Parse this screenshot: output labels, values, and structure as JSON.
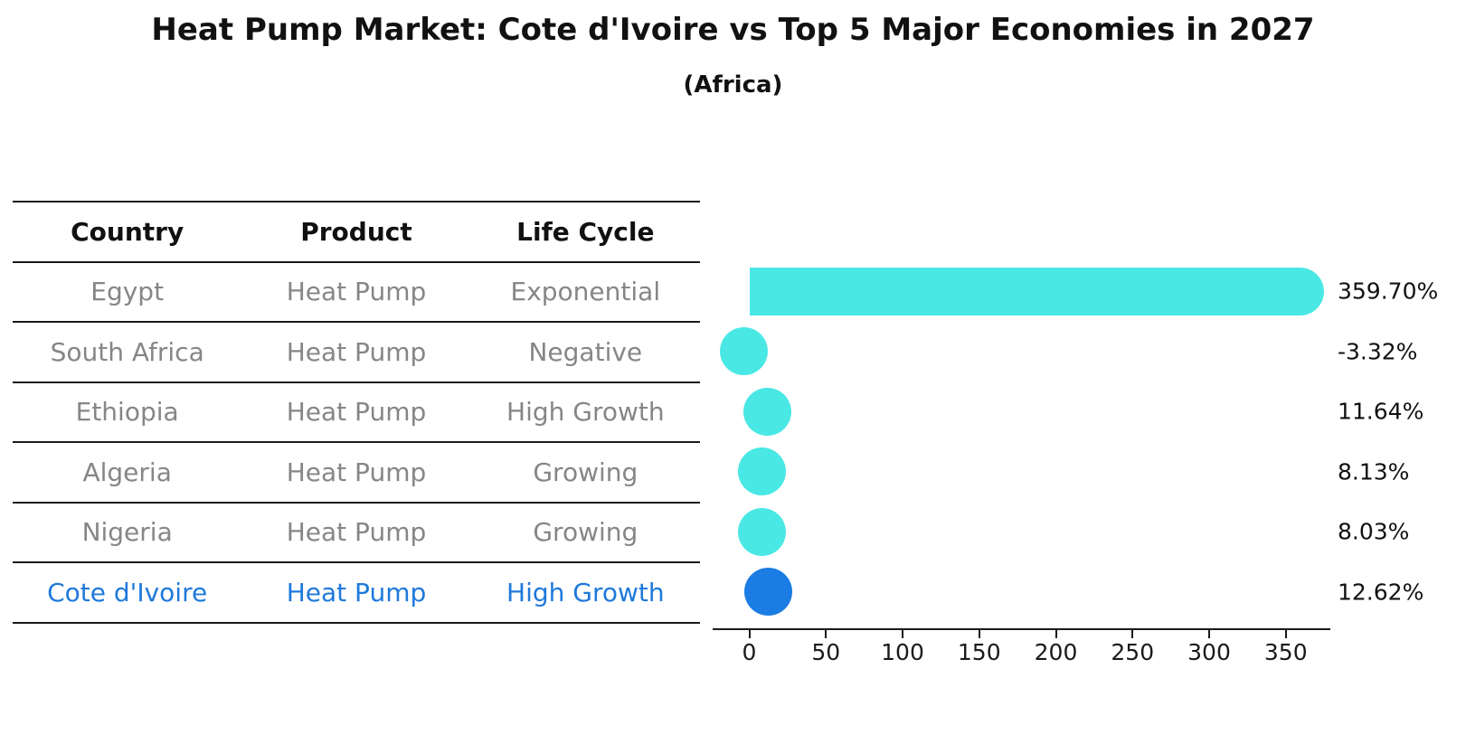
{
  "header": {
    "title": "Heat Pump Market: Cote d'Ivoire vs Top 5 Major Economies in 2027",
    "subtitle": "(Africa)"
  },
  "table": {
    "columns": [
      "Country",
      "Product",
      "Life Cycle"
    ],
    "rows": [
      {
        "country": "Egypt",
        "product": "Heat Pump",
        "life_cycle": "Exponential",
        "highlight": false
      },
      {
        "country": "South Africa",
        "product": "Heat Pump",
        "life_cycle": "Negative",
        "highlight": false
      },
      {
        "country": "Ethiopia",
        "product": "Heat Pump",
        "life_cycle": "High Growth",
        "highlight": false
      },
      {
        "country": "Algeria",
        "product": "Heat Pump",
        "life_cycle": "Growing",
        "highlight": false
      },
      {
        "country": "Nigeria",
        "product": "Heat Pump",
        "life_cycle": "Growing",
        "highlight": false
      },
      {
        "country": "Cote d'Ivoire",
        "product": "Heat Pump",
        "life_cycle": "High Growth",
        "highlight": true
      }
    ]
  },
  "chart_data": {
    "type": "bar",
    "orientation": "horizontal",
    "title": "Heat Pump Market: Cote d'Ivoire vs Top 5 Major Economies in 2027",
    "subtitle": "(Africa)",
    "categories": [
      "Egypt",
      "South Africa",
      "Ethiopia",
      "Algeria",
      "Nigeria",
      "Cote d'Ivoire"
    ],
    "values": [
      359.7,
      -3.32,
      11.64,
      8.13,
      8.03,
      12.62
    ],
    "labels": [
      "359.70%",
      "-3.32%",
      "11.64%",
      "8.13%",
      "8.03%",
      "12.62%"
    ],
    "bar_colors": [
      "#4AE8E4",
      "#4AE8E4",
      "#4AE8E4",
      "#4AE8E4",
      "#4AE8E4",
      "#1B7CE3"
    ],
    "xlabel": "",
    "ylabel": "",
    "xticks": [
      0,
      50,
      100,
      150,
      200,
      250,
      300,
      350
    ],
    "xlim": [
      -25,
      380
    ],
    "grid": false,
    "legend": "none",
    "highlight_category": "Cote d'Ivoire",
    "value_suffix": "%"
  },
  "colors": {
    "bar_cyan": "#4AE8E4",
    "bar_blue": "#1B7CE3",
    "highlight_text": "#1E79DB",
    "cell_text": "#868686",
    "heading_text": "#111111",
    "axis": "#1a1a1a"
  }
}
